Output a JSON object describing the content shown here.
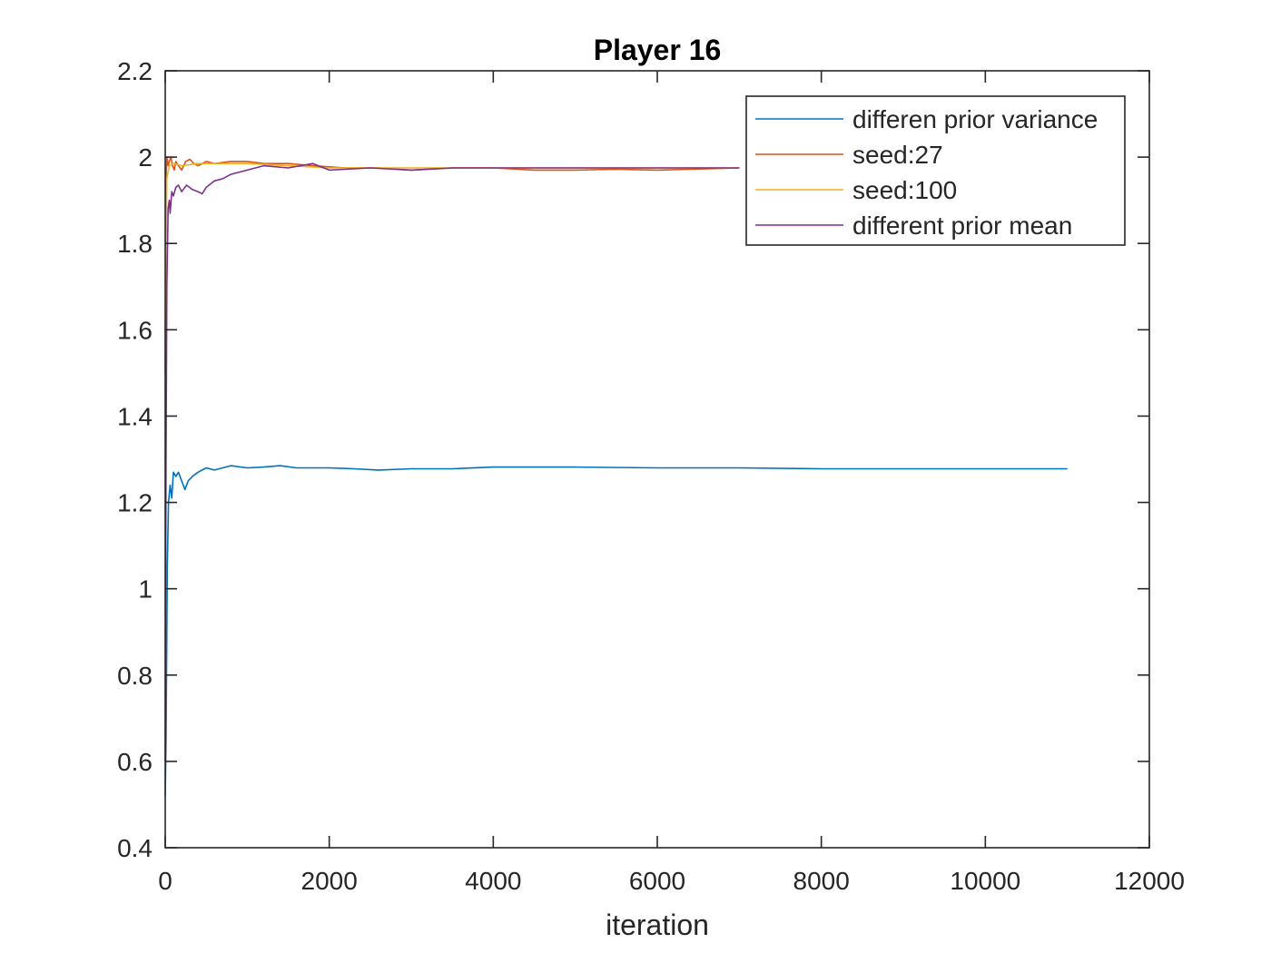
{
  "chart_data": {
    "type": "line",
    "title": "Player 16",
    "xlabel": "iteration",
    "ylabel": "",
    "xlim": [
      0,
      12000
    ],
    "ylim": [
      0.4,
      2.2
    ],
    "xticks": [
      0,
      2000,
      4000,
      6000,
      8000,
      10000,
      12000
    ],
    "xtick_labels": [
      "0",
      "2000",
      "4000",
      "6000",
      "8000",
      "10000",
      "12000"
    ],
    "yticks": [
      0.4,
      0.6,
      0.8,
      1,
      1.2,
      1.4,
      1.6,
      1.8,
      2,
      2.2
    ],
    "ytick_labels": [
      "0.4",
      "0.6",
      "0.8",
      "1",
      "1.2",
      "1.4",
      "1.6",
      "1.8",
      "2",
      "2.2"
    ],
    "grid": false,
    "legend_position": "top-right",
    "series": [
      {
        "name": "differen prior variance",
        "color": "#0072BD",
        "x": [
          0,
          10,
          25,
          40,
          60,
          80,
          100,
          130,
          160,
          200,
          240,
          280,
          330,
          400,
          500,
          600,
          800,
          1000,
          1200,
          1400,
          1600,
          2000,
          2300,
          2600,
          3000,
          3500,
          4000,
          5000,
          6000,
          7000,
          8000,
          9000,
          10000,
          11000
        ],
        "y": [
          0.52,
          0.65,
          1.05,
          1.2,
          1.24,
          1.21,
          1.27,
          1.26,
          1.27,
          1.25,
          1.23,
          1.25,
          1.26,
          1.27,
          1.28,
          1.275,
          1.285,
          1.28,
          1.282,
          1.285,
          1.28,
          1.28,
          1.278,
          1.275,
          1.278,
          1.278,
          1.282,
          1.282,
          1.28,
          1.28,
          1.278,
          1.278,
          1.278,
          1.278
        ]
      },
      {
        "name": "seed:27",
        "color": "#D95319",
        "x": [
          0,
          10,
          20,
          35,
          50,
          70,
          90,
          110,
          130,
          160,
          200,
          250,
          300,
          350,
          400,
          500,
          600,
          800,
          1000,
          1200,
          1500,
          1800,
          2200,
          2600,
          3000,
          3500,
          4000,
          4500,
          5000,
          5500,
          6000,
          7000
        ],
        "y": [
          1.5,
          1.95,
          2.0,
          1.98,
          1.99,
          2.0,
          1.98,
          1.97,
          1.99,
          1.98,
          1.97,
          1.99,
          1.995,
          1.985,
          1.98,
          1.99,
          1.985,
          1.99,
          1.99,
          1.985,
          1.985,
          1.98,
          1.975,
          1.975,
          1.97,
          1.975,
          1.975,
          1.97,
          1.97,
          1.972,
          1.97,
          1.975
        ]
      },
      {
        "name": "seed:100",
        "color": "#EDB120",
        "x": [
          0,
          20,
          50,
          100,
          200,
          400,
          700,
          1000,
          1500,
          2000,
          3000,
          4000,
          5000,
          6000,
          7000
        ],
        "y": [
          1.6,
          1.95,
          1.98,
          1.985,
          1.98,
          1.985,
          1.985,
          1.985,
          1.98,
          1.975,
          1.975,
          1.975,
          1.975,
          1.975,
          1.975
        ]
      },
      {
        "name": "different prior mean",
        "color": "#7E2F8E",
        "x": [
          0,
          10,
          20,
          35,
          50,
          60,
          80,
          100,
          130,
          160,
          200,
          260,
          330,
          400,
          450,
          500,
          600,
          700,
          800,
          1000,
          1200,
          1500,
          1800,
          2000,
          2500,
          3000,
          3500,
          4000,
          5000,
          6000,
          7000
        ],
        "y": [
          0.6,
          1.3,
          1.7,
          1.88,
          1.9,
          1.87,
          1.92,
          1.91,
          1.93,
          1.935,
          1.92,
          1.935,
          1.925,
          1.92,
          1.915,
          1.93,
          1.945,
          1.95,
          1.96,
          1.97,
          1.98,
          1.975,
          1.985,
          1.97,
          1.975,
          1.97,
          1.975,
          1.975,
          1.975,
          1.975,
          1.975
        ]
      }
    ]
  }
}
